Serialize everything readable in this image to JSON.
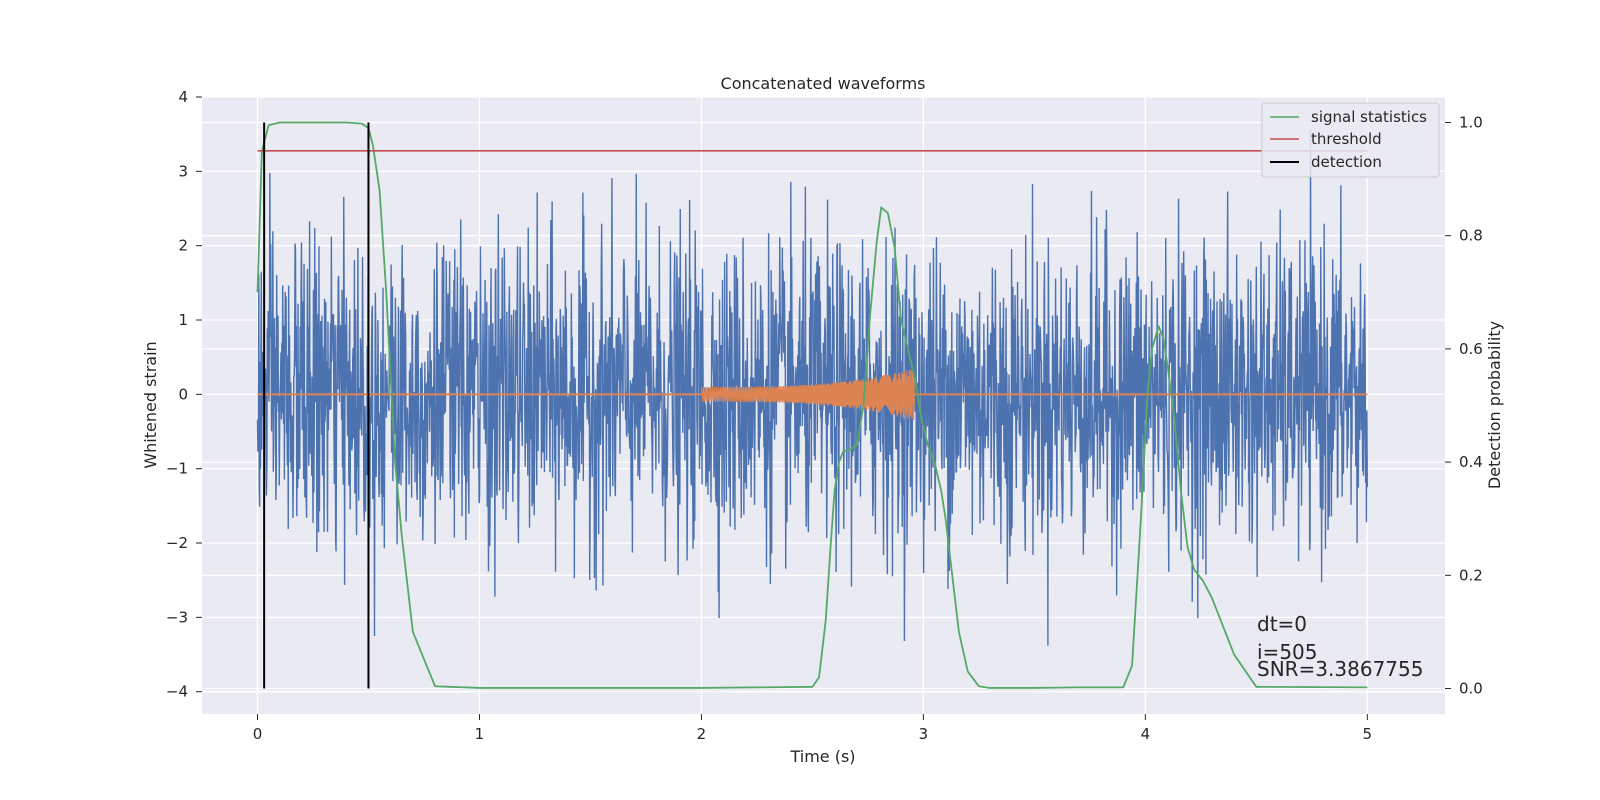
{
  "chart_data": {
    "type": "line",
    "title": "Concatenated waveforms",
    "xlabel": "Time (s)",
    "ylabel_left": "Whitened strain",
    "ylabel_right": "Detection probability",
    "xlim": [
      -0.25,
      5.35
    ],
    "ylim_left": [
      -4.3,
      4.0
    ],
    "ylim_right": [
      -0.045,
      1.045
    ],
    "x_ticks": [
      "0",
      "1",
      "2",
      "3",
      "4",
      "5"
    ],
    "y_ticks_left": [
      "4",
      "3",
      "2",
      "1",
      "0",
      "−1",
      "−2",
      "−3",
      "−4"
    ],
    "y_ticks_right": [
      "1.0",
      "0.8",
      "0.6",
      "0.4",
      "0.2",
      "0.0"
    ],
    "grid": true,
    "legend": {
      "placement": "top-right",
      "entries": [
        "signal statistics",
        "threshold",
        "detection"
      ]
    },
    "colors": {
      "background": "#eaeaf2",
      "noise": "#4c72b0",
      "injection": "#dd8452",
      "statistic": "#55a868",
      "threshold": "#c44e52",
      "detection": "#000000"
    },
    "series": [
      {
        "name": "signal statistics",
        "axis": "right",
        "x": [
          0.0,
          0.02,
          0.05,
          0.1,
          0.2,
          0.3,
          0.4,
          0.47,
          0.5,
          0.52,
          0.55,
          0.58,
          0.6,
          0.62,
          0.65,
          0.7,
          0.8,
          1.0,
          1.5,
          2.0,
          2.5,
          2.53,
          2.56,
          2.58,
          2.6,
          2.62,
          2.64,
          2.66,
          2.7,
          2.73,
          2.76,
          2.79,
          2.81,
          2.84,
          2.87,
          2.9,
          2.93,
          2.96,
          2.99,
          3.02,
          3.05,
          3.08,
          3.1,
          3.13,
          3.16,
          3.2,
          3.25,
          3.3,
          3.5,
          3.7,
          3.9,
          3.94,
          3.98,
          4.01,
          4.03,
          4.06,
          4.08,
          4.1,
          4.13,
          4.16,
          4.19,
          4.22,
          4.26,
          4.3,
          4.34,
          4.4,
          4.5,
          5.0
        ],
        "y": [
          0.7,
          0.95,
          0.995,
          1.0,
          1.0,
          1.0,
          1.0,
          0.998,
          0.99,
          0.96,
          0.88,
          0.7,
          0.55,
          0.4,
          0.27,
          0.1,
          0.004,
          0.001,
          0.001,
          0.001,
          0.003,
          0.02,
          0.12,
          0.24,
          0.35,
          0.4,
          0.42,
          0.42,
          0.43,
          0.5,
          0.66,
          0.79,
          0.85,
          0.84,
          0.78,
          0.65,
          0.6,
          0.55,
          0.48,
          0.43,
          0.4,
          0.35,
          0.3,
          0.2,
          0.1,
          0.03,
          0.004,
          0.001,
          0.001,
          0.002,
          0.002,
          0.04,
          0.3,
          0.52,
          0.6,
          0.64,
          0.62,
          0.57,
          0.48,
          0.35,
          0.25,
          0.21,
          0.19,
          0.16,
          0.12,
          0.06,
          0.003,
          0.002
        ]
      },
      {
        "name": "threshold",
        "axis": "right",
        "x": [
          0.0,
          5.0
        ],
        "y": [
          0.95,
          0.95
        ]
      },
      {
        "name": "detection",
        "axis": "right",
        "type": "vline",
        "x": [
          0.03,
          0.5
        ],
        "y": [
          0.0,
          1.0
        ]
      },
      {
        "axis": "left",
        "type": "noise",
        "x_range": [
          0.0,
          5.0
        ],
        "typical_amplitude": 1.0,
        "extreme_range": [
          -3.9,
          3.65
        ],
        "samples": 2600
      },
      {
        "axis": "left",
        "type": "chirp",
        "x_range": [
          2.0,
          2.96
        ],
        "amplitude_start": 0.1,
        "amplitude_end": 0.35,
        "zero_line_x": [
          0.0,
          5.0
        ]
      }
    ],
    "annotations": [
      "dt=0",
      "i=505",
      "SNR=3.3867755"
    ]
  }
}
